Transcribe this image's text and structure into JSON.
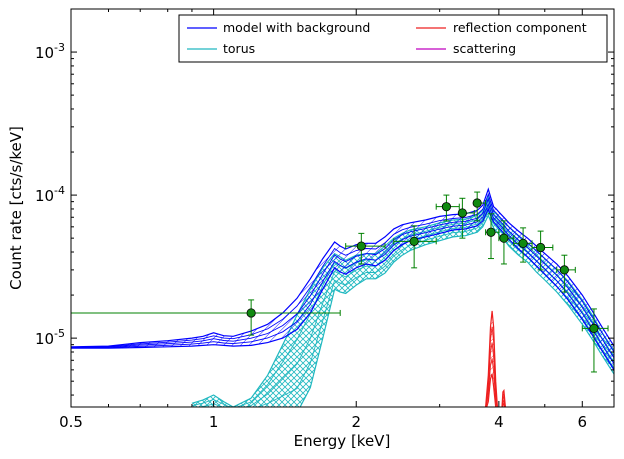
{
  "chart_data": {
    "type": "line",
    "xlabel": "Energy [keV]",
    "ylabel": "Count rate [cts/s/keV]",
    "x_scale": "log",
    "y_scale": "log",
    "xlim": [
      0.5,
      7.0
    ],
    "ylim": [
      3.3e-06,
      0.002
    ],
    "x_ticks": [
      0.5,
      1,
      2,
      4,
      6
    ],
    "x_tick_labels": [
      "0.5",
      "1",
      "2",
      "4",
      "6"
    ],
    "y_ticks": [
      1e-05,
      0.0001,
      0.001
    ],
    "y_tick_labels": [
      {
        "base": "10",
        "exp": "-5"
      },
      {
        "base": "10",
        "exp": "-4"
      },
      {
        "base": "10",
        "exp": "-3"
      }
    ],
    "grid": false,
    "legend_position": "top-right",
    "legend": [
      {
        "label": "model with background",
        "color": "#0000ff"
      },
      {
        "label": "torus",
        "color": "#20b8c0"
      },
      {
        "label": "reflection component",
        "color": "#ee2020"
      },
      {
        "label": "scattering",
        "color": "#bf00bf"
      }
    ],
    "colors": {
      "model": "#0000ff",
      "torus": "#20b8c0",
      "reflection": "#ee2020",
      "scattering": "#bf00bf",
      "data": "#008000",
      "data_face": "#108a10"
    },
    "series": [
      {
        "name": "model with background",
        "x": [
          0.5,
          0.6,
          0.7,
          0.8,
          0.9,
          0.95,
          1.0,
          1.05,
          1.1,
          1.2,
          1.3,
          1.4,
          1.5,
          1.6,
          1.7,
          1.8,
          1.85,
          1.9,
          2.0,
          2.1,
          2.2,
          2.3,
          2.4,
          2.5,
          2.6,
          2.8,
          3.0,
          3.2,
          3.4,
          3.6,
          3.7,
          3.8,
          3.85,
          3.9,
          3.95,
          4.0,
          4.1,
          4.2,
          4.4,
          4.6,
          4.8,
          5.0,
          5.3,
          5.6,
          6.0,
          6.3,
          6.6,
          7.0
        ],
        "upper": [
          8.7e-06,
          8.8e-06,
          9.3e-06,
          9.6e-06,
          1e-05,
          1.03e-05,
          1.09e-05,
          1.04e-05,
          1.03e-05,
          1.12e-05,
          1.25e-05,
          1.5e-05,
          1.9e-05,
          2.6e-05,
          3.6e-05,
          4.7e-05,
          4.4e-05,
          4.2e-05,
          4.5e-05,
          4.6e-05,
          4.6e-05,
          5.1e-05,
          5.8e-05,
          6.2e-05,
          6.4e-05,
          6.7e-05,
          7.1e-05,
          7.3e-05,
          7.4e-05,
          7.8e-05,
          8.5e-05,
          0.00011,
          9.5e-05,
          8.3e-05,
          8e-05,
          7.6e-05,
          7e-05,
          6.4e-05,
          5.6e-05,
          5e-05,
          4.4e-05,
          3.9e-05,
          3.3e-05,
          2.7e-05,
          2e-05,
          1.55e-05,
          1.2e-05,
          8.8e-06
        ],
        "lower": [
          8.5e-06,
          8.5e-06,
          8.6e-06,
          8.7e-06,
          8.8e-06,
          8.9e-06,
          9e-06,
          8.9e-06,
          8.8e-06,
          8.9e-06,
          9.3e-06,
          1e-05,
          1.15e-05,
          1.5e-05,
          2.2e-05,
          3.1e-05,
          2.9e-05,
          2.8e-05,
          3.1e-05,
          3.3e-05,
          3.2e-05,
          3.5e-05,
          4.1e-05,
          4.5e-05,
          4.8e-05,
          5.1e-05,
          5.4e-05,
          5.7e-05,
          5.8e-05,
          6.1e-05,
          6.6e-05,
          8e-05,
          7.1e-05,
          6.5e-05,
          6.2e-05,
          5.9e-05,
          5.4e-05,
          4.9e-05,
          4.2e-05,
          3.7e-05,
          3.2e-05,
          2.8e-05,
          2.3e-05,
          1.85e-05,
          1.35e-05,
          1.05e-05,
          8.2e-06,
          6e-06
        ]
      },
      {
        "name": "torus",
        "x": [
          0.9,
          0.95,
          1.0,
          1.05,
          1.1,
          1.2,
          1.3,
          1.4,
          1.5,
          1.6,
          1.7,
          1.8,
          1.85,
          1.9,
          2.0,
          2.1,
          2.2,
          2.3,
          2.4,
          2.5,
          2.6,
          2.8,
          3.0,
          3.2,
          3.4,
          3.6,
          3.7,
          3.8,
          3.85,
          3.9,
          3.95,
          4.0,
          4.1,
          4.2,
          4.4,
          4.6,
          4.8,
          5.0,
          5.3,
          5.6,
          6.0,
          6.3,
          6.6,
          7.0
        ],
        "upper": [
          3.5e-06,
          3.7e-06,
          4e-06,
          3.6e-06,
          3.3e-06,
          3.8e-06,
          5.5e-06,
          9e-06,
          1.45e-05,
          2.2e-05,
          3.1e-05,
          3.9e-05,
          3.7e-05,
          3.5e-05,
          3.8e-05,
          3.9e-05,
          3.9e-05,
          4.4e-05,
          5e-05,
          5.4e-05,
          5.7e-05,
          6e-05,
          6.4e-05,
          6.7e-05,
          6.8e-05,
          7.2e-05,
          7.8e-05,
          9.8e-05,
          8.7e-05,
          7.7e-05,
          7.4e-05,
          7e-05,
          6.5e-05,
          6e-05,
          5.2e-05,
          4.6e-05,
          4.1e-05,
          3.6e-05,
          3e-05,
          2.5e-05,
          1.85e-05,
          1.45e-05,
          1.1e-05,
          8.2e-06
        ],
        "lower": [
          3e-06,
          3e-06,
          3e-06,
          3e-06,
          3e-06,
          3e-06,
          3e-06,
          3e-06,
          3e-06,
          4.5e-06,
          1e-05,
          2.2e-05,
          2.1e-05,
          2.05e-05,
          2.35e-05,
          2.6e-05,
          2.6e-05,
          2.85e-05,
          3.4e-05,
          3.8e-05,
          4.1e-05,
          4.5e-05,
          4.8e-05,
          5.1e-05,
          5.2e-05,
          5.5e-05,
          6e-05,
          7.2e-05,
          6.5e-05,
          5.9e-05,
          5.6e-05,
          5.3e-05,
          4.9e-05,
          4.4e-05,
          3.8e-05,
          3.4e-05,
          2.9e-05,
          2.55e-05,
          2.1e-05,
          1.7e-05,
          1.25e-05,
          9.8e-06,
          7.6e-06,
          5.6e-06
        ]
      },
      {
        "name": "reflection component",
        "x": [
          3.7,
          3.75,
          3.8,
          3.84,
          3.87,
          3.9,
          3.94,
          3.98,
          4.02,
          4.06,
          4.08,
          4.1,
          4.13,
          4.17
        ],
        "upper": [
          3e-06,
          3.3e-06,
          5.5e-06,
          1.2e-05,
          1.55e-05,
          1.2e-05,
          5e-06,
          3e-06,
          3e-06,
          3.2e-06,
          4.2e-06,
          4.3e-06,
          3.3e-06,
          3e-06
        ],
        "lower": [
          3e-06,
          3.1e-06,
          3.6e-06,
          5.2e-06,
          5.6e-06,
          4.6e-06,
          3.3e-06,
          3e-06,
          3e-06,
          3e-06,
          3.4e-06,
          3.5e-06,
          3.1e-06,
          3e-06
        ]
      },
      {
        "name": "scattering",
        "x": [],
        "upper": [],
        "lower": []
      },
      {
        "name": "data",
        "points": [
          {
            "x": 1.2,
            "y": 1.5e-05,
            "xlo": 0.5,
            "xhi": 1.85,
            "ylo": 1.05e-05,
            "yhi": 1.85e-05
          },
          {
            "x": 2.05,
            "y": 4.4e-05,
            "xlo": 1.9,
            "xhi": 2.3,
            "ylo": 3.3e-05,
            "yhi": 5.4e-05
          },
          {
            "x": 2.65,
            "y": 4.75e-05,
            "xlo": 2.4,
            "xhi": 2.95,
            "ylo": 3.1e-05,
            "yhi": 6.1e-05
          },
          {
            "x": 3.1,
            "y": 8.3e-05,
            "xlo": 2.95,
            "xhi": 3.3,
            "ylo": 6.6e-05,
            "yhi": 0.0001
          },
          {
            "x": 3.35,
            "y": 7.5e-05,
            "xlo": 3.3,
            "xhi": 3.55,
            "ylo": 5e-05,
            "yhi": 9.5e-05
          },
          {
            "x": 3.6,
            "y": 8.8e-05,
            "xlo": 3.55,
            "xhi": 3.75,
            "ylo": 6.6e-05,
            "yhi": 0.000105
          },
          {
            "x": 3.85,
            "y": 5.5e-05,
            "xlo": 3.75,
            "xhi": 4.0,
            "ylo": 3.6e-05,
            "yhi": 7.4e-05
          },
          {
            "x": 4.1,
            "y": 5e-05,
            "xlo": 4.0,
            "xhi": 4.3,
            "ylo": 3.3e-05,
            "yhi": 6.6e-05
          },
          {
            "x": 4.5,
            "y": 4.6e-05,
            "xlo": 4.3,
            "xhi": 4.7,
            "ylo": 3.4e-05,
            "yhi": 5.9e-05
          },
          {
            "x": 4.9,
            "y": 4.3e-05,
            "xlo": 4.7,
            "xhi": 5.2,
            "ylo": 3e-05,
            "yhi": 5.6e-05
          },
          {
            "x": 5.5,
            "y": 3e-05,
            "xlo": 5.3,
            "xhi": 5.8,
            "ylo": 2.1e-05,
            "yhi": 3.8e-05
          },
          {
            "x": 6.35,
            "y": 1.17e-05,
            "xlo": 6.0,
            "xhi": 6.8,
            "ylo": 5.8e-06,
            "yhi": 1.6e-05
          }
        ]
      }
    ]
  }
}
